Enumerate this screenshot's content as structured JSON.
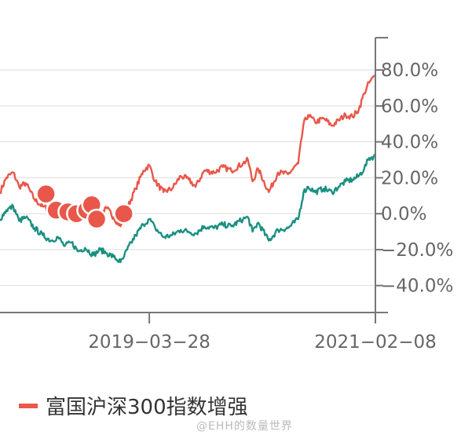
{
  "chart_data": {
    "type": "line",
    "title": "",
    "xlabel": "",
    "ylabel": "",
    "y_axis_position": "right",
    "ylim": [
      -55,
      98
    ],
    "ytick_values": [
      -40,
      -20,
      0,
      20,
      40,
      60,
      80
    ],
    "ytick_labels": [
      "−40.0%",
      "−20.0%",
      "0.0%",
      "20.0%",
      "40.0%",
      "60.0%",
      "80.0%"
    ],
    "xlim": [
      "2018-01-01",
      "2021-02-08"
    ],
    "xtick_values": [
      "2019-03-28",
      "2021-02-08"
    ],
    "xtick_labels": [
      "2019−03−28",
      "2021−02−08"
    ],
    "grid": true,
    "legend_position": "bottom-left",
    "series": [
      {
        "name": "富国沪深300指数增强",
        "color": "#e8574a",
        "points": [
          [
            "2018-01-01",
            12
          ],
          [
            "2018-01-20",
            20
          ],
          [
            "2018-02-10",
            23
          ],
          [
            "2018-02-28",
            15
          ],
          [
            "2018-03-20",
            17
          ],
          [
            "2018-04-15",
            8
          ],
          [
            "2018-05-10",
            4
          ],
          [
            "2018-06-05",
            2
          ],
          [
            "2018-06-25",
            4
          ],
          [
            "2018-07-15",
            1
          ],
          [
            "2018-08-05",
            5
          ],
          [
            "2018-08-25",
            -1
          ],
          [
            "2018-09-15",
            2
          ],
          [
            "2018-10-10",
            -4
          ],
          [
            "2018-10-31",
            0
          ],
          [
            "2018-11-20",
            3
          ],
          [
            "2018-12-10",
            -2
          ],
          [
            "2018-12-31",
            -7
          ],
          [
            "2019-01-08",
            -3
          ],
          [
            "2019-01-20",
            3
          ],
          [
            "2019-02-15",
            14
          ],
          [
            "2019-03-10",
            24
          ],
          [
            "2019-03-28",
            27
          ],
          [
            "2019-04-15",
            18
          ],
          [
            "2019-05-10",
            12
          ],
          [
            "2019-06-05",
            14
          ],
          [
            "2019-07-01",
            21
          ],
          [
            "2019-07-25",
            19
          ],
          [
            "2019-08-15",
            15
          ],
          [
            "2019-09-10",
            24
          ],
          [
            "2019-10-10",
            23
          ],
          [
            "2019-11-05",
            26
          ],
          [
            "2019-12-01",
            24
          ],
          [
            "2020-01-05",
            28
          ],
          [
            "2020-01-20",
            30
          ],
          [
            "2020-02-03",
            18
          ],
          [
            "2020-02-20",
            25
          ],
          [
            "2020-03-23",
            12
          ],
          [
            "2020-04-20",
            23
          ],
          [
            "2020-05-20",
            22
          ],
          [
            "2020-06-20",
            28
          ],
          [
            "2020-07-06",
            50
          ],
          [
            "2020-07-20",
            55
          ],
          [
            "2020-08-10",
            51
          ],
          [
            "2020-09-05",
            53
          ],
          [
            "2020-09-30",
            49
          ],
          [
            "2020-10-20",
            52
          ],
          [
            "2020-11-10",
            55
          ],
          [
            "2020-12-01",
            54
          ],
          [
            "2020-12-20",
            58
          ],
          [
            "2021-01-05",
            67
          ],
          [
            "2021-01-20",
            73
          ],
          [
            "2021-02-08",
            77
          ]
        ]
      },
      {
        "name": "",
        "color": "#1a9080",
        "points": [
          [
            "2018-01-01",
            -3
          ],
          [
            "2018-01-20",
            2
          ],
          [
            "2018-02-10",
            4
          ],
          [
            "2018-02-28",
            -4
          ],
          [
            "2018-03-20",
            -2
          ],
          [
            "2018-04-15",
            -8
          ],
          [
            "2018-05-10",
            -12
          ],
          [
            "2018-06-05",
            -15
          ],
          [
            "2018-06-25",
            -13
          ],
          [
            "2018-07-15",
            -18
          ],
          [
            "2018-08-05",
            -16
          ],
          [
            "2018-08-25",
            -21
          ],
          [
            "2018-09-15",
            -19
          ],
          [
            "2018-10-10",
            -23
          ],
          [
            "2018-10-31",
            -20
          ],
          [
            "2018-11-20",
            -22
          ],
          [
            "2018-12-10",
            -24
          ],
          [
            "2018-12-31",
            -27
          ],
          [
            "2019-01-08",
            -25
          ],
          [
            "2019-01-20",
            -20
          ],
          [
            "2019-02-15",
            -12
          ],
          [
            "2019-03-10",
            -6
          ],
          [
            "2019-03-28",
            -3
          ],
          [
            "2019-04-15",
            -8
          ],
          [
            "2019-05-10",
            -13
          ],
          [
            "2019-06-05",
            -12
          ],
          [
            "2019-07-01",
            -9
          ],
          [
            "2019-07-25",
            -10
          ],
          [
            "2019-08-15",
            -11
          ],
          [
            "2019-09-10",
            -7
          ],
          [
            "2019-10-10",
            -8
          ],
          [
            "2019-11-05",
            -6
          ],
          [
            "2019-12-01",
            -7
          ],
          [
            "2020-01-05",
            -3
          ],
          [
            "2020-01-20",
            -2
          ],
          [
            "2020-02-03",
            -10
          ],
          [
            "2020-02-20",
            -5
          ],
          [
            "2020-03-23",
            -15
          ],
          [
            "2020-04-20",
            -9
          ],
          [
            "2020-05-20",
            -8
          ],
          [
            "2020-06-20",
            -3
          ],
          [
            "2020-07-06",
            12
          ],
          [
            "2020-07-20",
            15
          ],
          [
            "2020-08-10",
            12
          ],
          [
            "2020-09-05",
            14
          ],
          [
            "2020-09-30",
            12
          ],
          [
            "2020-10-20",
            15
          ],
          [
            "2020-11-10",
            18
          ],
          [
            "2020-12-01",
            19
          ],
          [
            "2020-12-20",
            21
          ],
          [
            "2021-01-05",
            25
          ],
          [
            "2021-01-20",
            31
          ],
          [
            "2021-02-08",
            32
          ]
        ]
      }
    ],
    "markers": {
      "color": "#e8574a",
      "points": [
        [
          "2018-05-20",
          11
        ],
        [
          "2018-06-20",
          2
        ],
        [
          "2018-07-25",
          1
        ],
        [
          "2018-08-20",
          0
        ],
        [
          "2018-09-20",
          2
        ],
        [
          "2018-10-05",
          5
        ],
        [
          "2018-10-20",
          -3
        ],
        [
          "2019-01-10",
          0
        ]
      ]
    }
  },
  "watermark": "@EHH的数量世界"
}
